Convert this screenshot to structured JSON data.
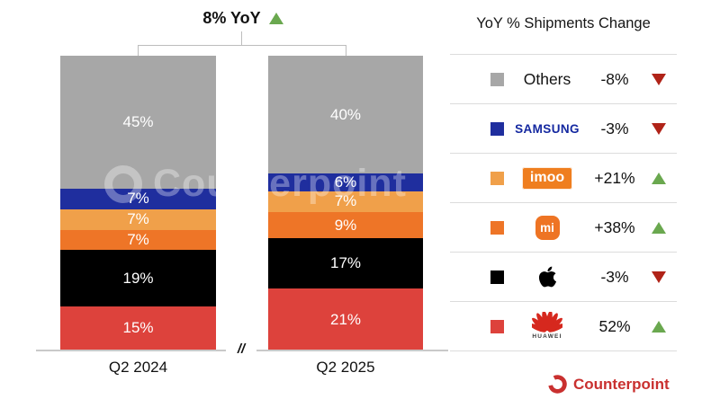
{
  "watermark": {
    "text": "Counterpoint"
  },
  "axis": {
    "break_symbol": "//"
  },
  "chart_data": {
    "type": "bar",
    "subtype": "stacked-100-percent",
    "title": "8% YoY",
    "total_change_label": "8% YoY",
    "total_change_direction": "up",
    "categories": [
      "Q2 2024",
      "Q2 2025"
    ],
    "unit": "%",
    "ylim": [
      0,
      100
    ],
    "stack_order": "top-to-bottom",
    "series": [
      {
        "name": "Others",
        "color": "#a7a7a7",
        "values": [
          45,
          40
        ]
      },
      {
        "name": "Samsung",
        "color": "#1f2e9e",
        "values": [
          7,
          6
        ]
      },
      {
        "name": "imoo",
        "color": "#f0a04a",
        "values": [
          7,
          7
        ]
      },
      {
        "name": "Xiaomi",
        "color": "#ee7527",
        "values": [
          7,
          9
        ]
      },
      {
        "name": "Apple",
        "color": "#000000",
        "values": [
          19,
          17
        ]
      },
      {
        "name": "Huawei",
        "color": "#dd423c",
        "values": [
          15,
          21
        ]
      }
    ],
    "legend_position": "right",
    "grid": false
  },
  "legend": {
    "title": "YoY % Shipments Change",
    "up_color": "#6aa84f",
    "down_color": "#b02318",
    "rows": [
      {
        "brand": "Others",
        "logo_text": "Others",
        "swatch": "#a7a7a7",
        "change": "-8%",
        "direction": "down"
      },
      {
        "brand": "Samsung",
        "logo_text": "SAMSUNG",
        "swatch": "#1f2e9e",
        "change": "-3%",
        "direction": "down"
      },
      {
        "brand": "imoo",
        "logo_text": "imoo",
        "swatch": "#f0a04a",
        "change": "+21%",
        "direction": "up"
      },
      {
        "brand": "Xiaomi",
        "logo_text": "mi",
        "swatch": "#ee7527",
        "change": "+38%",
        "direction": "up"
      },
      {
        "brand": "Apple",
        "logo_text": "",
        "swatch": "#000000",
        "change": "-3%",
        "direction": "down"
      },
      {
        "brand": "Huawei",
        "logo_text": "HUAWEI",
        "swatch": "#dd423c",
        "change": "52%",
        "direction": "up"
      }
    ]
  },
  "footer": {
    "brand": "Counterpoint"
  }
}
